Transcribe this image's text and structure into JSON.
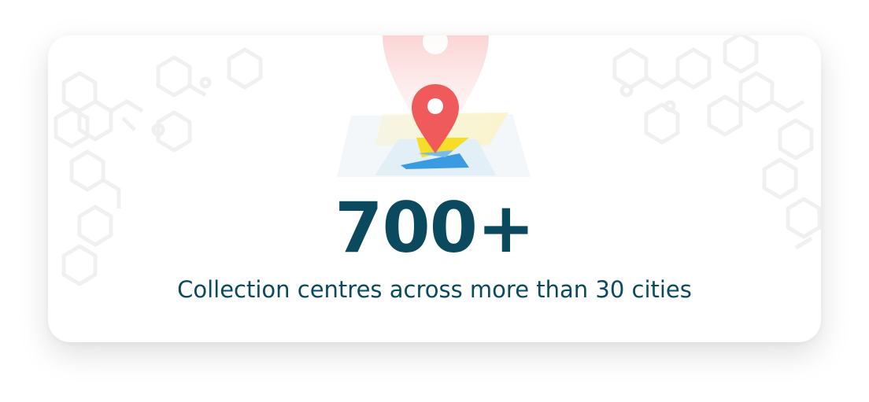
{
  "stat": {
    "number": "700+",
    "caption": "Collection centres across more than 30 cities"
  },
  "illustration": {
    "icon": "map-pin-icon",
    "pin_color": "#f05a5a",
    "glow_color": "#fde3e3",
    "map_yellow": "#f5dd28",
    "map_blue": "#3b9be0"
  },
  "colors": {
    "text": "#0b4a5e",
    "card_background": "#ffffff",
    "pattern": "#f0f0f0"
  }
}
